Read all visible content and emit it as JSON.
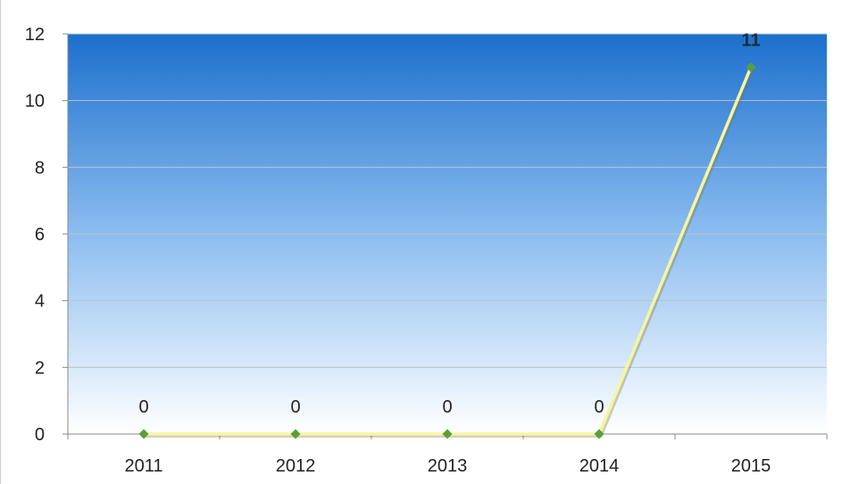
{
  "chart_data": {
    "type": "line",
    "title": "",
    "xlabel": "",
    "ylabel": "",
    "categories": [
      "2011",
      "2012",
      "2013",
      "2014",
      "2015"
    ],
    "series": [
      {
        "values": [
          0,
          0,
          0,
          0,
          11
        ],
        "data_labels": [
          "0",
          "0",
          "0",
          "0",
          "11"
        ]
      }
    ],
    "ylim": [
      0,
      12
    ],
    "yticks": [
      "0",
      "2",
      "4",
      "6",
      "8",
      "10",
      "12"
    ],
    "grid": true,
    "legend": "none",
    "colors": {
      "line": "#f8f5a0",
      "marker": "#5a9e3a",
      "bg_top": "#1c6fcd",
      "bg_bottom": "#ffffff",
      "grid": "#b8c4cf"
    }
  }
}
